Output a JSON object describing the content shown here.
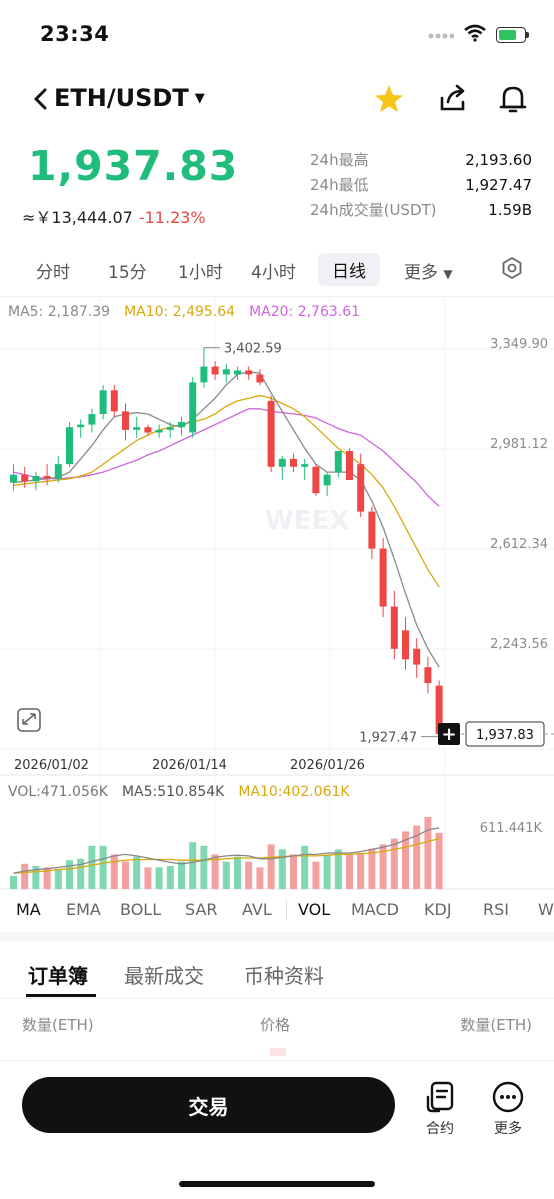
{
  "status": {
    "time": "23:34"
  },
  "header": {
    "pair": "ETH/USDT"
  },
  "price": {
    "last": "1,937.83",
    "cny": "≈￥13,444.07",
    "change": "-11.23%"
  },
  "stats": [
    {
      "label": "24h最高",
      "value": "2,193.60"
    },
    {
      "label": "24h最低",
      "value": "1,927.47"
    },
    {
      "label": "24h成交量(USDT)",
      "value": "1.59B"
    }
  ],
  "timeframes": [
    "分时",
    "15分",
    "1小时",
    "4小时",
    "日线",
    "更多"
  ],
  "timeframe_active": "日线",
  "ma_legend": {
    "ma5": "MA5: 2,187.39",
    "ma10": "MA10: 2,495.64",
    "ma20": "MA20: 2,763.61"
  },
  "vol_legend": {
    "vol": "VOL:471.056K",
    "ma5": "MA5:510.854K",
    "ma10": "MA10:402.061K"
  },
  "indicators": [
    "MA",
    "EMA",
    "BOLL",
    "SAR",
    "AVL",
    "VOL",
    "MACD",
    "KDJ",
    "RSI",
    "W"
  ],
  "section_tabs": [
    "订单簿",
    "最新成交",
    "币种资料"
  ],
  "orderbook_head": {
    "left": "数量(ETH)",
    "mid": "价格",
    "right": "数量(ETH)"
  },
  "bottom": {
    "trade": "交易",
    "contract": "合约",
    "more": "更多"
  },
  "colors": {
    "up": "#1fbc7c",
    "down": "#ee4545",
    "ma5": "#8a8a8a",
    "ma10": "#d9a80b",
    "ma20": "#cc66dd"
  },
  "chart_data": {
    "type": "candlestick",
    "y_ticks": [
      "3,349.90",
      "2,981.12",
      "2,612.34",
      "2,243.56"
    ],
    "x_ticks": [
      "2026/01/02",
      "2026/01/14",
      "2026/01/26"
    ],
    "high_label": "3,402.59",
    "low_label": "1,927.47",
    "last_label": "1,937.83",
    "watermark": "WEEX",
    "vol_tick": "611.441K",
    "ylim": [
      1880,
      3480
    ],
    "candles": [
      {
        "o": 2890,
        "h": 2960,
        "l": 2860,
        "c": 2920
      },
      {
        "o": 2920,
        "h": 2950,
        "l": 2870,
        "c": 2895
      },
      {
        "o": 2895,
        "h": 2930,
        "l": 2860,
        "c": 2915
      },
      {
        "o": 2915,
        "h": 2960,
        "l": 2880,
        "c": 2905
      },
      {
        "o": 2905,
        "h": 2990,
        "l": 2890,
        "c": 2960
      },
      {
        "o": 2960,
        "h": 3120,
        "l": 2950,
        "c": 3100
      },
      {
        "o": 3100,
        "h": 3130,
        "l": 3060,
        "c": 3110
      },
      {
        "o": 3110,
        "h": 3170,
        "l": 3080,
        "c": 3150
      },
      {
        "o": 3150,
        "h": 3260,
        "l": 3130,
        "c": 3240
      },
      {
        "o": 3240,
        "h": 3260,
        "l": 3140,
        "c": 3160
      },
      {
        "o": 3160,
        "h": 3190,
        "l": 3050,
        "c": 3090
      },
      {
        "o": 3090,
        "h": 3140,
        "l": 3060,
        "c": 3100
      },
      {
        "o": 3100,
        "h": 3110,
        "l": 3070,
        "c": 3080
      },
      {
        "o": 3080,
        "h": 3110,
        "l": 3060,
        "c": 3090
      },
      {
        "o": 3090,
        "h": 3120,
        "l": 3060,
        "c": 3100
      },
      {
        "o": 3100,
        "h": 3140,
        "l": 3070,
        "c": 3120
      },
      {
        "o": 3080,
        "h": 3290,
        "l": 3060,
        "c": 3270
      },
      {
        "o": 3270,
        "h": 3402,
        "l": 3250,
        "c": 3330
      },
      {
        "o": 3330,
        "h": 3350,
        "l": 3280,
        "c": 3300
      },
      {
        "o": 3300,
        "h": 3340,
        "l": 3270,
        "c": 3320
      },
      {
        "o": 3300,
        "h": 3330,
        "l": 3280,
        "c": 3315
      },
      {
        "o": 3315,
        "h": 3330,
        "l": 3280,
        "c": 3300
      },
      {
        "o": 3300,
        "h": 3320,
        "l": 3260,
        "c": 3270
      },
      {
        "o": 3200,
        "h": 3220,
        "l": 2930,
        "c": 2950
      },
      {
        "o": 2950,
        "h": 2990,
        "l": 2900,
        "c": 2980
      },
      {
        "o": 2980,
        "h": 3000,
        "l": 2930,
        "c": 2950
      },
      {
        "o": 2950,
        "h": 2980,
        "l": 2900,
        "c": 2960
      },
      {
        "o": 2950,
        "h": 2960,
        "l": 2840,
        "c": 2850
      },
      {
        "o": 2880,
        "h": 2930,
        "l": 2840,
        "c": 2920
      },
      {
        "o": 2930,
        "h": 3010,
        "l": 2910,
        "c": 3010
      },
      {
        "o": 3010,
        "h": 3020,
        "l": 2900,
        "c": 2900
      },
      {
        "o": 2960,
        "h": 3000,
        "l": 2760,
        "c": 2780
      },
      {
        "o": 2780,
        "h": 2800,
        "l": 2600,
        "c": 2640
      },
      {
        "o": 2640,
        "h": 2680,
        "l": 2380,
        "c": 2420
      },
      {
        "o": 2420,
        "h": 2480,
        "l": 2220,
        "c": 2260
      },
      {
        "o": 2330,
        "h": 2380,
        "l": 2180,
        "c": 2220
      },
      {
        "o": 2260,
        "h": 2300,
        "l": 2150,
        "c": 2200
      },
      {
        "o": 2190,
        "h": 2230,
        "l": 2090,
        "c": 2130
      },
      {
        "o": 2120,
        "h": 2140,
        "l": 1927,
        "c": 1937
      }
    ],
    "ma5": [
      2890,
      2895,
      2900,
      2905,
      2910,
      2930,
      2980,
      3030,
      3090,
      3140,
      3150,
      3155,
      3150,
      3130,
      3110,
      3100,
      3130,
      3170,
      3210,
      3260,
      3300,
      3310,
      3305,
      3230,
      3160,
      3090,
      3020,
      2960,
      2930,
      2930,
      2930,
      2900,
      2820,
      2720,
      2600,
      2470,
      2350,
      2260,
      2190
    ],
    "ma10": [
      2880,
      2885,
      2890,
      2895,
      2900,
      2905,
      2915,
      2930,
      2960,
      2990,
      3020,
      3050,
      3070,
      3090,
      3100,
      3110,
      3120,
      3130,
      3150,
      3180,
      3200,
      3210,
      3220,
      3210,
      3190,
      3170,
      3140,
      3100,
      3060,
      3020,
      2990,
      2960,
      2920,
      2870,
      2800,
      2720,
      2640,
      2560,
      2495
    ],
    "ma20": [
      2930,
      2920,
      2910,
      2905,
      2905,
      2908,
      2912,
      2920,
      2930,
      2945,
      2960,
      2975,
      2995,
      3010,
      3030,
      3050,
      3070,
      3090,
      3110,
      3130,
      3150,
      3170,
      3170,
      3160,
      3155,
      3150,
      3145,
      3135,
      3115,
      3095,
      3080,
      3070,
      3040,
      3010,
      2970,
      2930,
      2890,
      2840,
      2800
    ],
    "volumes": [
      0.18,
      0.35,
      0.32,
      0.3,
      0.28,
      0.4,
      0.42,
      0.6,
      0.6,
      0.48,
      0.38,
      0.45,
      0.3,
      0.3,
      0.32,
      0.38,
      0.65,
      0.6,
      0.48,
      0.38,
      0.45,
      0.38,
      0.3,
      0.62,
      0.55,
      0.48,
      0.6,
      0.38,
      0.48,
      0.55,
      0.48,
      0.5,
      0.56,
      0.62,
      0.7,
      0.8,
      0.88,
      1.0,
      0.78
    ],
    "vol_ma5": [
      0.22,
      0.25,
      0.27,
      0.28,
      0.3,
      0.32,
      0.34,
      0.38,
      0.42,
      0.46,
      0.48,
      0.46,
      0.43,
      0.4,
      0.37,
      0.35,
      0.37,
      0.4,
      0.44,
      0.46,
      0.47,
      0.46,
      0.42,
      0.42,
      0.44,
      0.46,
      0.48,
      0.48,
      0.5,
      0.5,
      0.5,
      0.52,
      0.55,
      0.58,
      0.62,
      0.68,
      0.74,
      0.82,
      0.85
    ],
    "vol_ma10": [
      0.22,
      0.23,
      0.24,
      0.25,
      0.27,
      0.28,
      0.3,
      0.33,
      0.36,
      0.38,
      0.4,
      0.41,
      0.41,
      0.41,
      0.41,
      0.4,
      0.4,
      0.4,
      0.41,
      0.42,
      0.43,
      0.43,
      0.43,
      0.44,
      0.45,
      0.46,
      0.46,
      0.46,
      0.47,
      0.48,
      0.48,
      0.49,
      0.5,
      0.52,
      0.55,
      0.58,
      0.62,
      0.66,
      0.7
    ]
  }
}
